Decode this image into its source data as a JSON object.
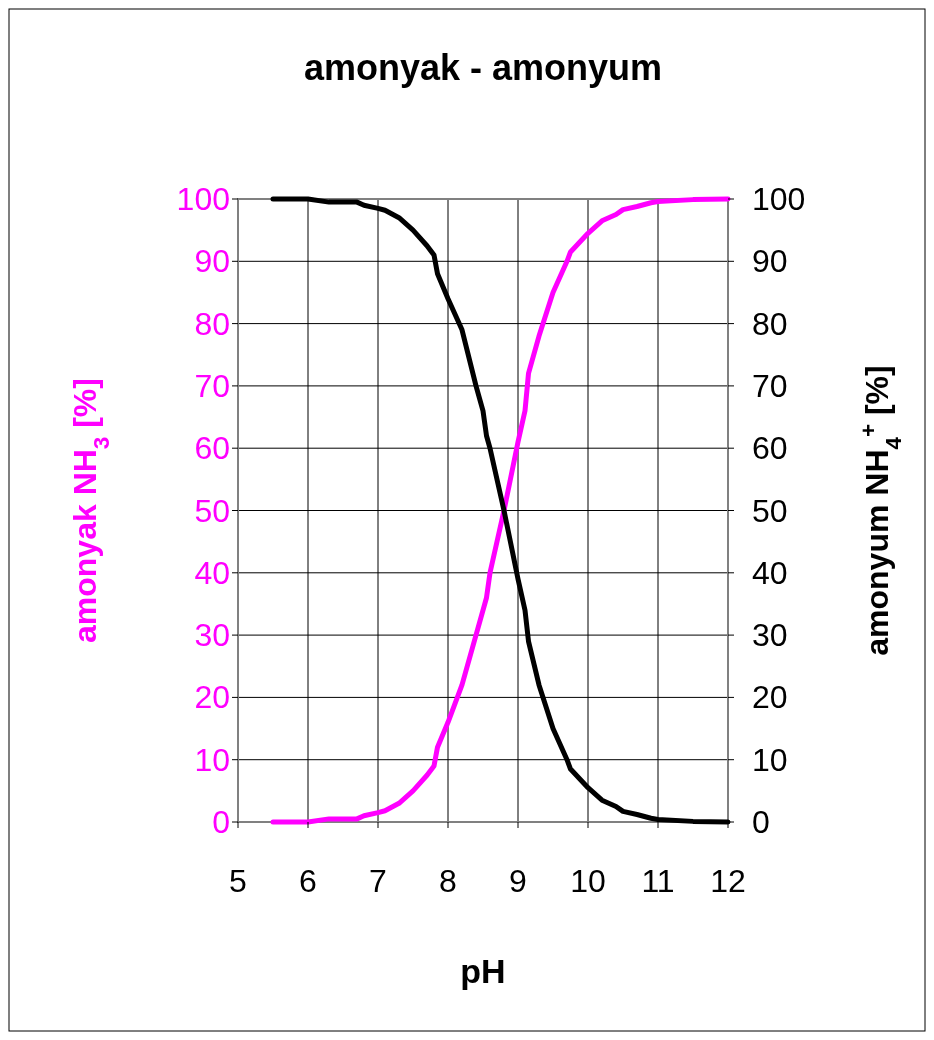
{
  "chart_data": {
    "type": "line",
    "title": "amonyak - amonyum",
    "xlabel": "pH",
    "ylabel": "amonyak NH$_{3}$ [%]",
    "y2label": "amonyum NH$_{4}$$^{+}$ [%]",
    "xlim": [
      5,
      12
    ],
    "xticks": [
      5,
      6,
      7,
      8,
      9,
      10,
      11,
      12
    ],
    "ylim": [
      0,
      100
    ],
    "yticks": [
      0,
      10,
      20,
      30,
      40,
      50,
      60,
      70,
      80,
      90,
      100
    ],
    "y2lim": [
      0,
      100
    ],
    "y2ticks": [
      0,
      10,
      20,
      30,
      40,
      50,
      60,
      70,
      80,
      90,
      100
    ],
    "grid": true,
    "marker": "none",
    "line_style": "solid",
    "series": [
      {
        "color": "#ff00ff",
        "axis": "y",
        "x": [
          5.5,
          6.0,
          6.3,
          6.7,
          6.8,
          7.0,
          7.1,
          7.3,
          7.5,
          7.7,
          7.8,
          7.85,
          8.0,
          8.2,
          8.4,
          8.55,
          8.6,
          8.8,
          9.0,
          9.1,
          9.15,
          9.3,
          9.5,
          9.7,
          9.75,
          10.0,
          10.2,
          10.4,
          10.5,
          10.7,
          10.9,
          11.0,
          11.5,
          12
        ],
        "values": [
          0,
          0,
          0.5,
          0.5,
          1,
          1.5,
          1.8,
          3,
          5,
          7.5,
          9,
          12,
          16,
          22,
          30,
          36,
          40,
          50,
          61,
          66,
          72,
          78,
          85,
          90,
          91.5,
          94.5,
          96.5,
          97.5,
          98.3,
          98.8,
          99.4,
          99.6,
          99.9,
          100
        ]
      },
      {
        "color": "#000000",
        "axis": "y2",
        "x": [
          5.5,
          6.0,
          6.3,
          6.7,
          6.8,
          7.0,
          7.1,
          7.3,
          7.5,
          7.7,
          7.8,
          7.85,
          8.0,
          8.2,
          8.4,
          8.5,
          8.55,
          8.6,
          8.8,
          9.0,
          9.1,
          9.15,
          9.3,
          9.5,
          9.7,
          9.75,
          10.0,
          10.2,
          10.4,
          10.5,
          10.7,
          10.9,
          11.0,
          11.5,
          12
        ],
        "values": [
          100,
          100,
          99.5,
          99.5,
          99,
          98.5,
          98.2,
          97,
          95,
          92.5,
          91,
          88,
          84,
          79,
          70,
          66,
          62,
          60,
          50,
          39,
          34,
          29,
          22,
          15,
          10,
          8.5,
          5.5,
          3.5,
          2.5,
          1.7,
          1.2,
          0.6,
          0.4,
          0.1,
          0
        ]
      }
    ]
  }
}
